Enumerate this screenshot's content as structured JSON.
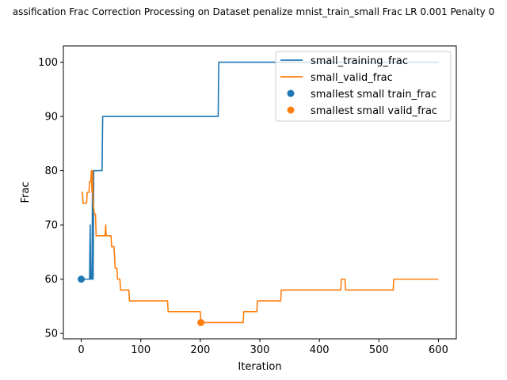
{
  "chart_data": {
    "type": "line",
    "title": "assification Frac Correction Processing on Dataset penalize mnist_train_small Frac LR 0.001 Penalty 0",
    "xlabel": "Iteration",
    "ylabel": "Frac",
    "xlim": [
      -30,
      630
    ],
    "ylim": [
      49,
      103
    ],
    "xticks": [
      0,
      100,
      200,
      300,
      400,
      500,
      600
    ],
    "yticks": [
      50,
      60,
      70,
      80,
      90,
      100
    ],
    "grid": false,
    "legend_position": "top-right",
    "series": [
      {
        "name": "small_training_frac",
        "color": "#1f77b4",
        "points": [
          [
            0,
            60
          ],
          [
            5,
            60
          ],
          [
            10,
            60
          ],
          [
            14,
            60
          ],
          [
            15,
            70
          ],
          [
            16,
            60
          ],
          [
            18,
            60
          ],
          [
            19,
            80
          ],
          [
            20,
            60
          ],
          [
            21,
            80
          ],
          [
            35,
            80
          ],
          [
            36,
            90
          ],
          [
            230,
            90
          ],
          [
            231,
            100
          ],
          [
            600,
            100
          ]
        ]
      },
      {
        "name": "small_valid_frac",
        "color": "#ff7f0e",
        "points": [
          [
            0,
            76
          ],
          [
            2,
            76
          ],
          [
            3,
            74
          ],
          [
            9,
            74
          ],
          [
            10,
            76
          ],
          [
            13,
            76
          ],
          [
            14,
            78
          ],
          [
            16,
            78
          ],
          [
            17,
            80
          ],
          [
            18,
            76
          ],
          [
            19,
            80
          ],
          [
            20,
            74
          ],
          [
            22,
            72
          ],
          [
            24,
            72
          ],
          [
            25,
            68
          ],
          [
            40,
            68
          ],
          [
            41,
            70
          ],
          [
            42,
            68
          ],
          [
            50,
            68
          ],
          [
            51,
            66
          ],
          [
            55,
            66
          ],
          [
            56,
            64
          ],
          [
            57,
            62
          ],
          [
            60,
            62
          ],
          [
            61,
            60
          ],
          [
            65,
            60
          ],
          [
            66,
            58
          ],
          [
            80,
            58
          ],
          [
            81,
            56
          ],
          [
            145,
            56
          ],
          [
            146,
            54
          ],
          [
            200,
            54
          ],
          [
            201,
            52
          ],
          [
            272,
            52
          ],
          [
            273,
            54
          ],
          [
            295,
            54
          ],
          [
            296,
            56
          ],
          [
            335,
            56
          ],
          [
            336,
            58
          ],
          [
            436,
            58
          ],
          [
            437,
            60
          ],
          [
            443,
            60
          ],
          [
            444,
            58
          ],
          [
            524,
            58
          ],
          [
            525,
            60
          ],
          [
            600,
            60
          ]
        ]
      }
    ],
    "markers": [
      {
        "name": "smallest small train_frac",
        "x": 0,
        "y": 60,
        "color": "#1f77b4"
      },
      {
        "name": "smallest small valid_frac",
        "x": 201,
        "y": 52,
        "color": "#ff7f0e"
      }
    ]
  }
}
